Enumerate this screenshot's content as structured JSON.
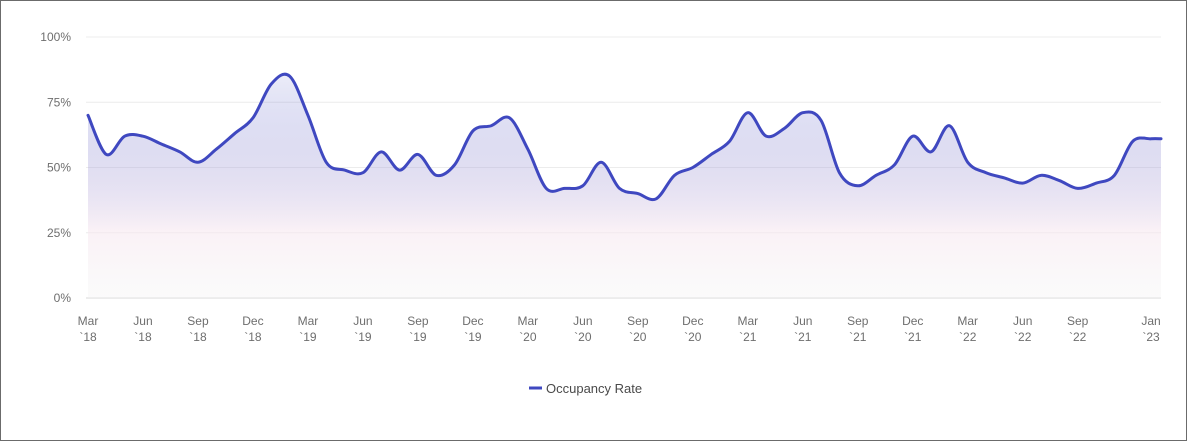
{
  "chart_data": {
    "type": "area",
    "ylim": [
      0,
      100
    ],
    "y_ticks": [
      "0%",
      "25%",
      "50%",
      "75%",
      "100%"
    ],
    "y_tick_values": [
      0,
      25,
      50,
      75,
      100
    ],
    "x_ticks": [
      {
        "month": "Mar",
        "year": "`18"
      },
      {
        "month": "Jun",
        "year": "`18"
      },
      {
        "month": "Sep",
        "year": "`18"
      },
      {
        "month": "Dec",
        "year": "`18"
      },
      {
        "month": "Mar",
        "year": "`19"
      },
      {
        "month": "Jun",
        "year": "`19"
      },
      {
        "month": "Sep",
        "year": "`19"
      },
      {
        "month": "Dec",
        "year": "`19"
      },
      {
        "month": "Mar",
        "year": "`20"
      },
      {
        "month": "Jun",
        "year": "`20"
      },
      {
        "month": "Sep",
        "year": "`20"
      },
      {
        "month": "Dec",
        "year": "`20"
      },
      {
        "month": "Mar",
        "year": "`21"
      },
      {
        "month": "Jun",
        "year": "`21"
      },
      {
        "month": "Sep",
        "year": "`21"
      },
      {
        "month": "Dec",
        "year": "`21"
      },
      {
        "month": "Mar",
        "year": "`22"
      },
      {
        "month": "Jun",
        "year": "`22"
      },
      {
        "month": "Sep",
        "year": "`22"
      },
      {
        "month": "Jan",
        "year": "`23"
      }
    ],
    "x": [
      "2018-03",
      "2018-04",
      "2018-05",
      "2018-06",
      "2018-07",
      "2018-08",
      "2018-09",
      "2018-10",
      "2018-11",
      "2018-12",
      "2019-01",
      "2019-02",
      "2019-03",
      "2019-04",
      "2019-05",
      "2019-06",
      "2019-07",
      "2019-08",
      "2019-09",
      "2019-10",
      "2019-11",
      "2019-12",
      "2020-01",
      "2020-02",
      "2020-03",
      "2020-04",
      "2020-05",
      "2020-06",
      "2020-07",
      "2020-08",
      "2020-09",
      "2020-10",
      "2020-11",
      "2020-12",
      "2021-01",
      "2021-02",
      "2021-03",
      "2021-04",
      "2021-05",
      "2021-06",
      "2021-07",
      "2021-08",
      "2021-09",
      "2021-10",
      "2021-11",
      "2021-12",
      "2022-01",
      "2022-02",
      "2022-03",
      "2022-04",
      "2022-05",
      "2022-06",
      "2022-07",
      "2022-08",
      "2022-09",
      "2022-10",
      "2022-11",
      "2022-12",
      "2023-01",
      "2023-02"
    ],
    "series": [
      {
        "name": "Occupancy Rate",
        "color": "#3f48c0",
        "values": [
          70,
          55,
          62,
          62,
          59,
          56,
          52,
          57,
          63,
          69,
          82,
          85,
          70,
          52,
          49,
          48,
          56,
          49,
          55,
          47,
          51,
          64,
          66,
          69,
          57,
          42,
          42,
          43,
          52,
          42,
          40,
          38,
          47,
          50,
          55,
          60,
          71,
          62,
          65,
          71,
          68,
          48,
          43,
          47,
          51,
          62,
          56,
          66,
          52,
          48,
          46,
          44,
          47,
          45,
          42,
          44,
          47,
          60,
          61,
          61
        ]
      }
    ],
    "grid": true,
    "legend": "bottom-center"
  }
}
